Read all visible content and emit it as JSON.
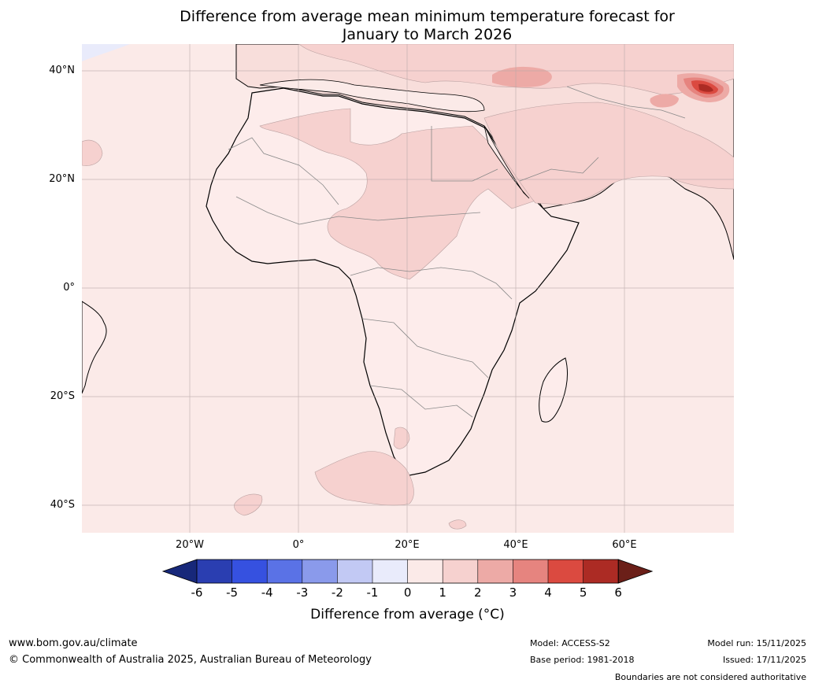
{
  "title": {
    "line1": "Difference from average mean minimum temperature forecast for",
    "line2": "January to March 2026"
  },
  "map": {
    "lat_labels": [
      "40°N",
      "20°N",
      "0°",
      "20°S",
      "40°S"
    ],
    "lon_labels": [
      "20°W",
      "0°",
      "20°E",
      "40°E",
      "60°E"
    ],
    "ocean_color": "#fbeae8",
    "land_color": "#fdeceb"
  },
  "colorbar": {
    "ticks": [
      "-6",
      "-5",
      "-4",
      "-3",
      "-2",
      "-1",
      "0",
      "1",
      "2",
      "3",
      "4",
      "5",
      "6"
    ],
    "colors": [
      "#17287a",
      "#2a3eb1",
      "#3651e0",
      "#5a72e6",
      "#8a9aeb",
      "#c2c9f4",
      "#e9ebfb",
      "#fbeae8",
      "#f6d1cf",
      "#edaaa6",
      "#e6847f",
      "#db4a40",
      "#ac2b24",
      "#6b1f18"
    ],
    "label": "Difference from average (°C)"
  },
  "footer": {
    "website": "www.bom.gov.au/climate",
    "copyright": "© Commonwealth of Australia 2025, Australian Bureau of Meteorology",
    "model": "Model: ACCESS-S2",
    "base_period": "Base period: 1981-2018",
    "model_run": "Model run: 15/11/2025",
    "issued": "Issued: 17/11/2025",
    "boundaries": "Boundaries are not considered authoritative"
  }
}
